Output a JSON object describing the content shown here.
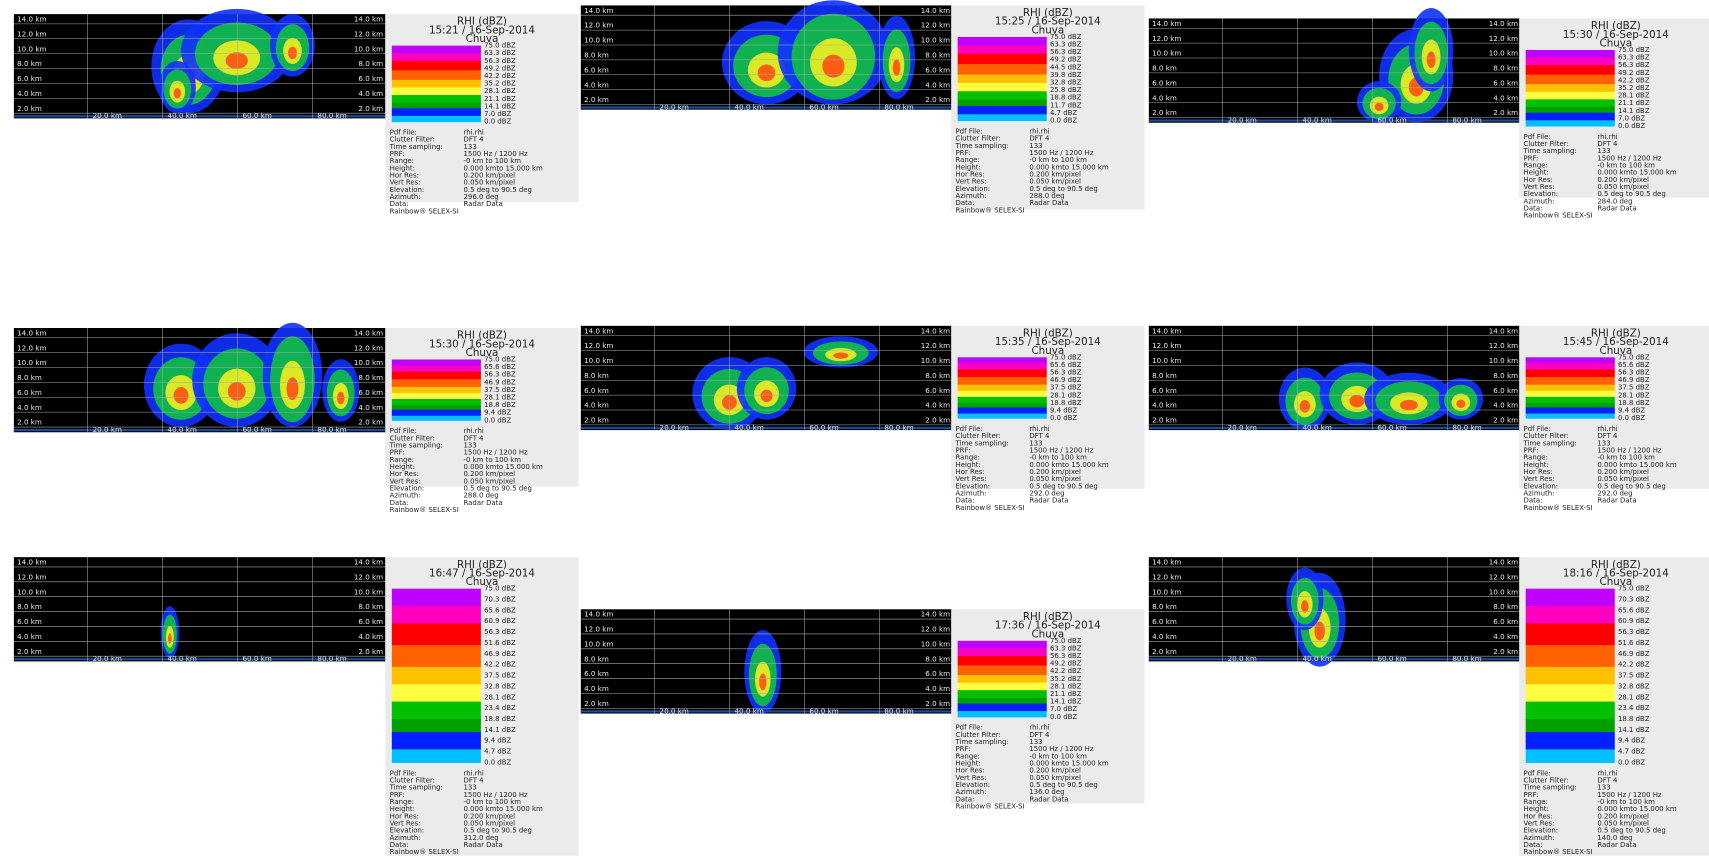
{
  "common": {
    "y_labels": [
      "14.0 km",
      "12.0 km",
      "10.0 km",
      "8.0 km",
      "6.0 km",
      "4.0 km",
      "2.0 km"
    ],
    "x_labels": [
      "20.0 km",
      "40.0 km",
      "60.0 km",
      "80.0 km"
    ],
    "title": "RHI (dBZ)",
    "name": "Chuva",
    "info": [
      [
        "Pdf File:",
        "rhi.rhi"
      ],
      [
        "Clutter Filter:",
        "DFT 4"
      ],
      [
        "Time sampling:",
        "133"
      ],
      [
        "PRF:",
        "1500 Hz / 1200 Hz"
      ],
      [
        "Range:",
        "-0 km to 100 km"
      ],
      [
        "Height:",
        "0.000 kmto 15.000 km"
      ],
      [
        "Hor Res:",
        "0.200 km/pixel"
      ],
      [
        "Vert Res:",
        "0.050 km/pixel"
      ],
      [
        "Elevation:",
        "0.5 deg to 90.5 deg"
      ]
    ],
    "azimuth_label": "Azimuth:",
    "data_row": [
      "Data:",
      "Radar Data"
    ],
    "footer": "Rainbow® SELEX-SI"
  },
  "panels": [
    {
      "time": "15:21 / 16-Sep-2014",
      "azimuth": "296.0 deg",
      "scale": [
        "75.0 dBZ",
        "63.3 dBZ",
        "56.3 dBZ",
        "49.2 dBZ",
        "42.2 dBZ",
        "35.2 dBZ",
        "28.1 dBZ",
        "21.1 dBZ",
        "14.1 dBZ",
        "7.0 dBZ",
        "0.0 dBZ"
      ]
    },
    {
      "time": "15:25 / 16-Sep-2014",
      "azimuth": "288.0 deg",
      "scale": [
        "75.0 dBZ",
        "63.3 dBZ",
        "56.3 dBZ",
        "49.2 dBZ",
        "44.5 dBZ",
        "39.8 dBZ",
        "32.8 dBZ",
        "25.8 dBZ",
        "18.8 dBZ",
        "11.7 dBZ",
        "4.7 dBZ",
        "0.0 dBZ"
      ]
    },
    {
      "time": "15:30 / 16-Sep-2014",
      "azimuth": "284.0 deg",
      "scale": [
        "75.0 dBZ",
        "63.3 dBZ",
        "56.3 dBZ",
        "49.2 dBZ",
        "42.2 dBZ",
        "35.2 dBZ",
        "28.1 dBZ",
        "21.1 dBZ",
        "14.1 dBZ",
        "7.0 dBZ",
        "0.0 dBZ"
      ]
    },
    {
      "time": "15:30 / 16-Sep-2014",
      "azimuth": "288.0 deg",
      "scale": [
        "75.0 dBZ",
        "65.6 dBZ",
        "56.3 dBZ",
        "46.9 dBZ",
        "37.5 dBZ",
        "28.1 dBZ",
        "18.8 dBZ",
        "9.4 dBZ",
        "0.0 dBZ"
      ]
    },
    {
      "time": "15:35 / 16-Sep-2014",
      "azimuth": "292.0 deg",
      "scale": [
        "75.0 dBZ",
        "65.6 dBZ",
        "56.3 dBZ",
        "46.9 dBZ",
        "37.5 dBZ",
        "28.1 dBZ",
        "18.8 dBZ",
        "9.4 dBZ",
        "0.0 dBZ"
      ]
    },
    {
      "time": "15:45 / 16-Sep-2014",
      "azimuth": "292.0 deg",
      "scale": [
        "75.0 dBZ",
        "65.6 dBZ",
        "56.3 dBZ",
        "46.9 dBZ",
        "37.5 dBZ",
        "28.1 dBZ",
        "18.8 dBZ",
        "9.4 dBZ",
        "0.0 dBZ"
      ]
    },
    {
      "time": "16:47 / 16-Sep-2014",
      "azimuth": "312.0 deg",
      "scale": [
        "75.0 dBZ",
        "70.3 dBZ",
        "65.6 dBZ",
        "60.9 dBZ",
        "56.3 dBZ",
        "51.6 dBZ",
        "46.9 dBZ",
        "42.2 dBZ",
        "37.5 dBZ",
        "32.8 dBZ",
        "28.1 dBZ",
        "23.4 dBZ",
        "18.8 dBZ",
        "14.1 dBZ",
        "9.4 dBZ",
        "4.7 dBZ",
        "0.0 dBZ"
      ]
    },
    {
      "time": "17:36 / 16-Sep-2014",
      "azimuth": "136.0 deg",
      "scale": [
        "75.0 dBZ",
        "63.3 dBZ",
        "56.3 dBZ",
        "49.2 dBZ",
        "42.2 dBZ",
        "35.2 dBZ",
        "28.1 dBZ",
        "21.1 dBZ",
        "14.1 dBZ",
        "7.0 dBZ",
        "0.0 dBZ"
      ]
    },
    {
      "time": "18:16 / 16-Sep-2014",
      "azimuth": "140.0 deg",
      "scale": [
        "75.0 dBZ",
        "70.3 dBZ",
        "65.6 dBZ",
        "60.9 dBZ",
        "56.3 dBZ",
        "51.6 dBZ",
        "46.9 dBZ",
        "42.2 dBZ",
        "37.5 dBZ",
        "32.8 dBZ",
        "28.1 dBZ",
        "23.4 dBZ",
        "18.8 dBZ",
        "14.1 dBZ",
        "9.4 dBZ",
        "4.7 dBZ",
        "0.0 dBZ"
      ]
    }
  ]
}
